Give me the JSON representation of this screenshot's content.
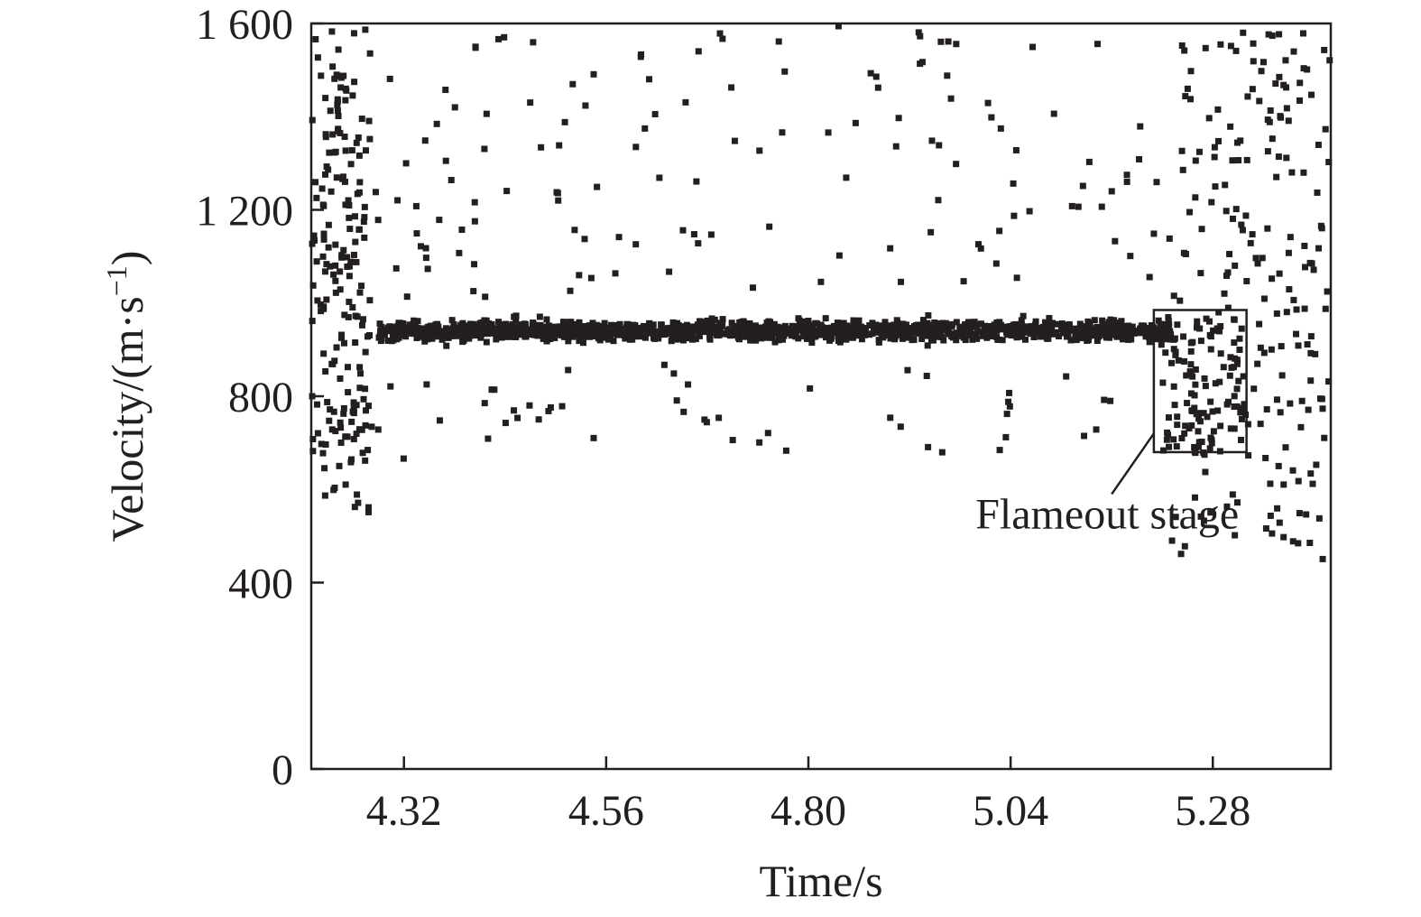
{
  "chart_data": {
    "type": "scatter",
    "title": "",
    "xlabel": "Time/s",
    "ylabel": "Velocity/(m·s⁻¹)",
    "xlim": [
      4.21,
      5.42
    ],
    "ylim": [
      0,
      1600
    ],
    "x_ticks": [
      {
        "value": 4.32,
        "label": "4.32"
      },
      {
        "value": 4.56,
        "label": "4.56"
      },
      {
        "value": 4.8,
        "label": "4.80"
      },
      {
        "value": 5.04,
        "label": "5.04"
      },
      {
        "value": 5.28,
        "label": "5.28"
      }
    ],
    "y_ticks": [
      {
        "value": 0,
        "label": "0"
      },
      {
        "value": 400,
        "label": "400"
      },
      {
        "value": 800,
        "label": "800"
      },
      {
        "value": 1200,
        "label": "1 200"
      },
      {
        "value": 1600,
        "label": "1 600"
      }
    ],
    "grid": false,
    "legend": "none",
    "marker_color": "#231f20",
    "series": [
      {
        "band": {
          "x_range": [
            4.29,
            5.23
          ],
          "y_center": 940,
          "y_spread": 45
        },
        "sparse_region": {
          "x_range": [
            4.21,
            5.42
          ],
          "y_range": [
            660,
            1600
          ]
        },
        "edge_clusters": [
          {
            "x_range": [
              4.21,
              4.28
            ],
            "y_range": [
              550,
              1600
            ]
          },
          {
            "x_range": [
              5.23,
              5.42
            ],
            "y_range": [
              450,
              1600
            ]
          }
        ],
        "flameout_points": {
          "x_range": [
            5.22,
            5.32
          ],
          "y_range": [
            680,
            970
          ]
        }
      }
    ],
    "annotations": [
      {
        "text": "Flameout stage",
        "box": {
          "x": [
            5.21,
            5.32
          ],
          "y": [
            680,
            985
          ]
        },
        "arrow_from": {
          "x": 5.16,
          "y": 590
        },
        "arrow_to": {
          "x": 5.21,
          "y": 720
        }
      }
    ]
  }
}
